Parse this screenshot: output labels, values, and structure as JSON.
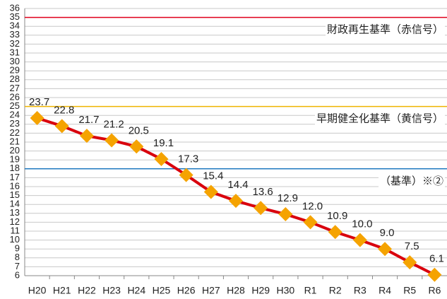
{
  "chart_data": {
    "type": "line",
    "categories": [
      "H20",
      "H21",
      "H22",
      "H23",
      "H24",
      "H25",
      "H26",
      "H27",
      "H28",
      "H29",
      "H30",
      "R1",
      "R2",
      "R3",
      "R4",
      "R5",
      "R6"
    ],
    "series": [
      {
        "color": "#d9000d",
        "marker_color": "#f5a300",
        "values": [
          23.7,
          22.8,
          21.7,
          21.2,
          20.5,
          19.1,
          17.3,
          15.4,
          14.4,
          13.6,
          12.9,
          12.0,
          10.9,
          10.0,
          9.0,
          7.5,
          6.1
        ],
        "value_labels": [
          "23.7",
          "22.8",
          "21.7",
          "21.2",
          "20.5",
          "19.1",
          "17.3",
          "15.4",
          "14.4",
          "13.6",
          "12.9",
          "12.0",
          "10.9",
          "10.0",
          "9.0",
          "7.5",
          "6.1"
        ]
      }
    ],
    "reference_lines": [
      {
        "value": 35,
        "label": "財政再生基準（赤信号）",
        "color": "#e0001b"
      },
      {
        "value": 25,
        "label": "早期健全化基準（黄信号）",
        "color": "#f0b400"
      },
      {
        "value": 18,
        "label": "（基準）※②",
        "color": "#1f7ac0"
      }
    ],
    "ylim": [
      6,
      36
    ],
    "yticks": [
      6,
      7,
      8,
      9,
      10,
      11,
      12,
      13,
      14,
      15,
      16,
      17,
      18,
      19,
      20,
      21,
      22,
      23,
      24,
      25,
      26,
      27,
      28,
      29,
      30,
      31,
      32,
      33,
      34,
      35,
      36
    ],
    "grid": true
  }
}
